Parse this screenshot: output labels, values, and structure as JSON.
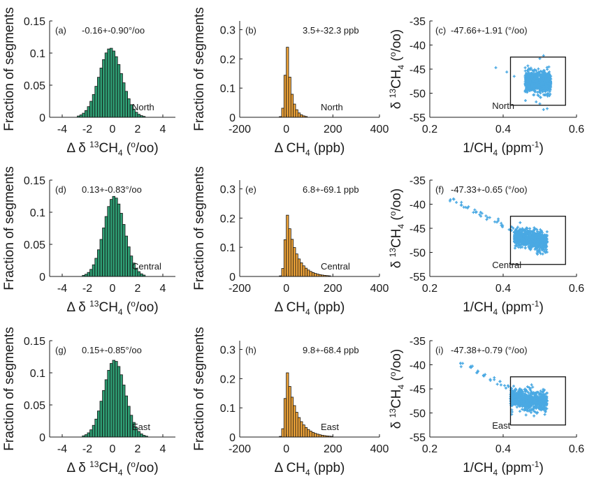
{
  "figure": {
    "colors": {
      "green": "#2f9e74",
      "orange": "#f2a63a",
      "scatter": "#4aa9e3",
      "axis": "#1a1a1a"
    },
    "regions": [
      "North",
      "Central",
      "East"
    ]
  },
  "chart_data": [
    {
      "id": "a",
      "panel_label": "(a)",
      "type": "bar",
      "stat_text": "-0.16+-0.90°/oo",
      "region_label": "North",
      "xlabel": "Δ δ 13CH4 (°/oo)",
      "ylabel": "Fraction of segments",
      "xlim": [
        -5,
        5
      ],
      "ylim": [
        0,
        0.15
      ],
      "xticks": [
        -4,
        -2,
        0,
        2,
        4
      ],
      "yticks": [
        0,
        0.05,
        0.1,
        0.15
      ],
      "xtick_labels": [
        "-4",
        "-2",
        "0",
        "2",
        "4"
      ],
      "ytick_labels": [
        "0",
        "0.05",
        "0.1",
        "0.15"
      ],
      "bin_width": 0.2,
      "mean": -0.16,
      "std": 0.9,
      "color_key": "green"
    },
    {
      "id": "b",
      "panel_label": "(b)",
      "type": "bar",
      "stat_text": "3.5+-32.3 ppb",
      "region_label": "North",
      "xlabel": "Δ CH4 (ppb)",
      "ylabel": "Fraction of segments",
      "xlim": [
        -200,
        400
      ],
      "ylim": [
        0,
        0.33
      ],
      "xticks": [
        -200,
        0,
        200,
        400
      ],
      "yticks": [
        0,
        0.1,
        0.2,
        0.3
      ],
      "xtick_labels": [
        "-200",
        "0",
        "200",
        "400"
      ],
      "ytick_labels": [
        "0",
        "0.1",
        "0.2",
        "0.3"
      ],
      "bin_width": 10,
      "peak": 0.24,
      "peak_x": 5,
      "tail_scale": 18,
      "color_key": "orange"
    },
    {
      "id": "c",
      "panel_label": "(c)",
      "type": "scatter",
      "stat_text": "-47.66+-1.91 (°/oo)",
      "region_label": "North",
      "xlabel": "1/CH4 (ppm-1)",
      "ylabel": "δ 13CH4 (°/oo)",
      "xlim": [
        0.2,
        0.6
      ],
      "ylim": [
        -55,
        -35
      ],
      "xticks": [
        0.2,
        0.4,
        0.6
      ],
      "yticks": [
        -55,
        -50,
        -45,
        -40,
        -35
      ],
      "xtick_labels": [
        "0.2",
        "0.4",
        "0.6"
      ],
      "ytick_labels": [
        "-55",
        "-50",
        "-45",
        "-40",
        "-35"
      ],
      "box": {
        "x": [
          0.42,
          0.57
        ],
        "y": [
          -52.5,
          -42.5
        ]
      },
      "cluster": {
        "x": [
          0.46,
          0.53
        ],
        "y_center": -47.7,
        "y_spread": 2.2
      },
      "extra_points": [
        [
          0.38,
          -44.7
        ],
        [
          0.41,
          -45.6
        ],
        [
          0.43,
          -46.5
        ],
        [
          0.5,
          -42.8
        ],
        [
          0.51,
          -42.2
        ],
        [
          0.5,
          -52.2
        ],
        [
          0.51,
          -53.4
        ],
        [
          0.49,
          -51.8
        ],
        [
          0.52,
          -53.2
        ],
        [
          0.47,
          -44.9
        ]
      ],
      "color_key": "scatter"
    },
    {
      "id": "d",
      "panel_label": "(d)",
      "type": "bar",
      "stat_text": "0.13+-0.83°/oo",
      "region_label": "Central",
      "xlabel": "Δ δ 13CH4 (°/oo)",
      "ylabel": "Fraction of segments",
      "xlim": [
        -5,
        5
      ],
      "ylim": [
        0,
        0.15
      ],
      "xticks": [
        -4,
        -2,
        0,
        2,
        4
      ],
      "yticks": [
        0,
        0.05,
        0.1,
        0.15
      ],
      "xtick_labels": [
        "-4",
        "-2",
        "0",
        "2",
        "4"
      ],
      "ytick_labels": [
        "0",
        "0.05",
        "0.1",
        "0.15"
      ],
      "bin_width": 0.2,
      "mean": 0.13,
      "std": 0.83,
      "color_key": "green"
    },
    {
      "id": "e",
      "panel_label": "(e)",
      "type": "bar",
      "stat_text": "6.8+-69.1 ppb",
      "region_label": "Central",
      "xlabel": "Δ CH4 (ppb)",
      "ylabel": "Fraction of segments",
      "xlim": [
        -200,
        400
      ],
      "ylim": [
        0,
        0.33
      ],
      "xticks": [
        -200,
        0,
        200,
        400
      ],
      "yticks": [
        0,
        0.1,
        0.2,
        0.3
      ],
      "xtick_labels": [
        "-200",
        "0",
        "200",
        "400"
      ],
      "ytick_labels": [
        "0",
        "0.1",
        "0.2",
        "0.3"
      ],
      "bin_width": 10,
      "peak": 0.21,
      "peak_x": 5,
      "tail_scale": 40,
      "color_key": "orange"
    },
    {
      "id": "f",
      "panel_label": "(f)",
      "type": "scatter",
      "stat_text": "-47.33+-0.65 (°/oo)",
      "region_label": "Central",
      "xlabel": "1/CH4 (ppm-1)",
      "ylabel": "δ 13CH4 (°/oo)",
      "xlim": [
        0.2,
        0.6
      ],
      "ylim": [
        -55,
        -35
      ],
      "xticks": [
        0.2,
        0.4,
        0.6
      ],
      "yticks": [
        -55,
        -50,
        -45,
        -40,
        -35
      ],
      "xtick_labels": [
        "0.2",
        "0.4",
        "0.6"
      ],
      "ytick_labels": [
        "-55",
        "-50",
        "-45",
        "-40",
        "-35"
      ],
      "box": {
        "x": [
          0.42,
          0.57
        ],
        "y": [
          -52.5,
          -42.5
        ]
      },
      "trail": [
        [
          0.26,
          -39.0
        ],
        [
          0.28,
          -39.8
        ],
        [
          0.3,
          -40.6
        ],
        [
          0.32,
          -41.3
        ],
        [
          0.34,
          -42.1
        ],
        [
          0.36,
          -42.8
        ],
        [
          0.38,
          -43.5
        ],
        [
          0.4,
          -44.3
        ],
        [
          0.42,
          -45.0
        ]
      ],
      "cluster": {
        "x": [
          0.43,
          0.52
        ],
        "y_center": -47.5,
        "y_spread": 2.0
      },
      "color_key": "scatter"
    },
    {
      "id": "g",
      "panel_label": "(g)",
      "type": "bar",
      "stat_text": "0.15+-0.85°/oo",
      "region_label": "East",
      "xlabel": "Δ δ 13CH4 (°/oo)",
      "ylabel": "Fraction of segments",
      "xlim": [
        -5,
        5
      ],
      "ylim": [
        0,
        0.15
      ],
      "xticks": [
        -4,
        -2,
        0,
        2,
        4
      ],
      "yticks": [
        0,
        0.05,
        0.1,
        0.15
      ],
      "xtick_labels": [
        "-4",
        "-2",
        "0",
        "2",
        "4"
      ],
      "ytick_labels": [
        "0",
        "0.05",
        "0.1",
        "0.15"
      ],
      "bin_width": 0.2,
      "mean": 0.15,
      "std": 0.85,
      "color_key": "green"
    },
    {
      "id": "h",
      "panel_label": "(h)",
      "type": "bar",
      "stat_text": "9.8+-68.4 ppb",
      "region_label": "East",
      "xlabel": "Δ CH4 (ppb)",
      "ylabel": "Fraction of segments",
      "xlim": [
        -200,
        400
      ],
      "ylim": [
        0,
        0.33
      ],
      "xticks": [
        -200,
        0,
        200,
        400
      ],
      "yticks": [
        0,
        0.1,
        0.2,
        0.3
      ],
      "xtick_labels": [
        "-200",
        "0",
        "200",
        "400"
      ],
      "ytick_labels": [
        "0",
        "0.1",
        "0.2",
        "0.3"
      ],
      "bin_width": 10,
      "peak": 0.22,
      "peak_x": 5,
      "tail_scale": 42,
      "color_key": "orange"
    },
    {
      "id": "i",
      "panel_label": "(i)",
      "type": "scatter",
      "stat_text": "-47.38+-0.79 (°/oo)",
      "region_label": "East",
      "xlabel": "1/CH4 (ppm-1)",
      "ylabel": "δ 13CH4 (°/oo)",
      "xlim": [
        0.2,
        0.6
      ],
      "ylim": [
        -55,
        -35
      ],
      "xticks": [
        0.2,
        0.4,
        0.6
      ],
      "yticks": [
        -55,
        -50,
        -45,
        -40,
        -35
      ],
      "xtick_labels": [
        "0.2",
        "0.4",
        "0.6"
      ],
      "ytick_labels": [
        "-55",
        "-50",
        "-45",
        "-40",
        "-35"
      ],
      "box": {
        "x": [
          0.42,
          0.57
        ],
        "y": [
          -52.5,
          -42.5
        ]
      },
      "trail": [
        [
          0.29,
          -40.0
        ],
        [
          0.31,
          -40.7
        ],
        [
          0.33,
          -41.5
        ],
        [
          0.35,
          -42.3
        ],
        [
          0.37,
          -43.0
        ],
        [
          0.39,
          -43.8
        ],
        [
          0.41,
          -44.6
        ]
      ],
      "cluster": {
        "x": [
          0.42,
          0.52
        ],
        "y_center": -47.6,
        "y_spread": 2.1
      },
      "color_key": "scatter"
    }
  ]
}
